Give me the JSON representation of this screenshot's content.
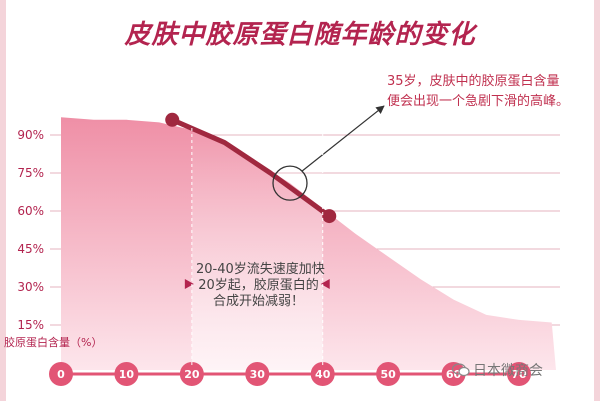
{
  "chart_data": {
    "type": "area",
    "title": "皮肤中胶原蛋白随年龄的变化",
    "ylabel": "胶原蛋白含量（%）",
    "xlabel": "",
    "x_ticks": [
      0,
      10,
      20,
      30,
      40,
      50,
      60,
      70
    ],
    "y_ticks": [
      "90%",
      "75%",
      "60%",
      "45%",
      "30%",
      "15%"
    ],
    "y_tick_values": [
      90,
      75,
      60,
      45,
      30,
      15
    ],
    "xlim": [
      0,
      70
    ],
    "ylim": [
      10,
      100
    ],
    "grid": true,
    "series": [
      {
        "values": [
          {
            "x": 0,
            "y": 97
          },
          {
            "x": 5,
            "y": 96
          },
          {
            "x": 10,
            "y": 96
          },
          {
            "x": 15,
            "y": 95
          },
          {
            "x": 20,
            "y": 92
          },
          {
            "x": 25,
            "y": 86
          },
          {
            "x": 30,
            "y": 79
          },
          {
            "x": 35,
            "y": 71
          },
          {
            "x": 40,
            "y": 61
          },
          {
            "x": 45,
            "y": 51
          },
          {
            "x": 50,
            "y": 42
          },
          {
            "x": 55,
            "y": 33
          },
          {
            "x": 60,
            "y": 25
          },
          {
            "x": 65,
            "y": 19
          },
          {
            "x": 70,
            "y": 17
          },
          {
            "x": 75,
            "y": 16
          }
        ]
      }
    ],
    "highlight_line": [
      {
        "x": 17,
        "y": 96
      },
      {
        "x": 25,
        "y": 87
      },
      {
        "x": 32,
        "y": 75
      },
      {
        "x": 41,
        "y": 58
      }
    ],
    "highlight_range": [
      20,
      40
    ],
    "annotations": {
      "peak_note": [
        "35岁，皮肤中的胶原蛋白含量",
        "便会出现一个急剧下滑的高峰。"
      ],
      "range_note": [
        "20-40岁流失速度加快",
        "20岁起，胶原蛋白的",
        "合成开始减弱！"
      ]
    },
    "colors": {
      "area": "#ef8fa6",
      "area_light": "#fde6ec",
      "highlight_band": "#ffffff",
      "line": "#a0283f",
      "grid": "#e5b3bf",
      "text": "#b3244f",
      "tick_circle": "#e25575"
    }
  },
  "watermark": "日本微商会",
  "watermark_icon": "wechat-icon"
}
